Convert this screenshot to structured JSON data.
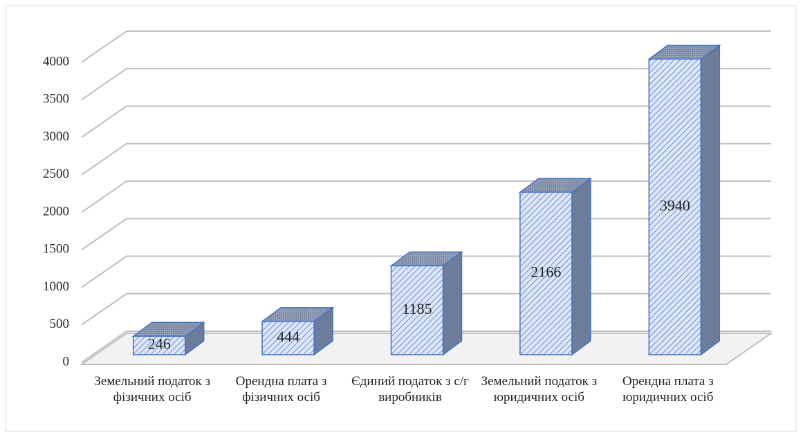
{
  "chart_data": {
    "type": "bar3d",
    "categories": [
      "Земельний податок з фізичних осіб",
      "Орендна плата з фізичних осіб",
      "Єдиний податок з с/г виробників",
      "Земельний податок з юридичних осіб",
      "Орендна плата з юридичних осіб"
    ],
    "values": [
      246,
      444,
      1185,
      2166,
      3940
    ],
    "color": "#4472c4",
    "ylim": [
      0,
      4000
    ],
    "yticks": [
      0,
      500,
      1000,
      1500,
      2000,
      2500,
      3000,
      3500,
      4000
    ],
    "grid": true
  }
}
